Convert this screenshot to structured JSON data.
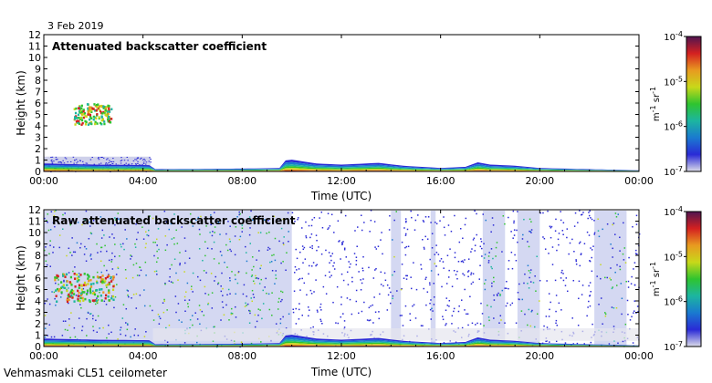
{
  "header": {
    "date": "3 Feb 2019"
  },
  "footer": {
    "site": "Vehmasmaki CL51 ceilometer"
  },
  "chart_data": [
    {
      "type": "heatmap",
      "title": "Attenuated backscatter coefficient",
      "xlabel": "Time (UTC)",
      "ylabel": "Height (km)",
      "x_ticks": [
        "00:00",
        "04:00",
        "08:00",
        "12:00",
        "16:00",
        "20:00",
        "00:00"
      ],
      "xlim_hours": [
        0,
        24
      ],
      "y_ticks": [
        "0",
        "1",
        "2",
        "3",
        "4",
        "5",
        "6",
        "7",
        "8",
        "9",
        "10",
        "11",
        "12"
      ],
      "ylim_km": [
        0,
        12
      ],
      "colorbar": {
        "scale": "log",
        "range": [
          1e-07,
          0.0001
        ],
        "ticks": [
          {
            "base": "10",
            "exp": "-4"
          },
          {
            "base": "10",
            "exp": "-5"
          },
          {
            "base": "10",
            "exp": "-6"
          },
          {
            "base": "10",
            "exp": "-7"
          }
        ],
        "label_main": "m",
        "label_exp1": "-1",
        "label_mid": " sr",
        "label_exp2": "-1",
        "colors": [
          "#dcdce8",
          "#2a2ad6",
          "#1a7ad0",
          "#1cb5a0",
          "#2fc42f",
          "#c8d81a",
          "#e89a20",
          "#d42020",
          "#501550"
        ]
      },
      "features": {
        "boundary_layer_km": [
          [
            0,
            0.7
          ],
          [
            2,
            0.6
          ],
          [
            4.3,
            0.55
          ],
          [
            4.4,
            0.2
          ],
          [
            8,
            0.25
          ],
          [
            9.5,
            0.3
          ],
          [
            9.8,
            1.1
          ],
          [
            11,
            0.7
          ],
          [
            12,
            0.6
          ],
          [
            13.5,
            0.75
          ],
          [
            14.5,
            0.5
          ],
          [
            16,
            0.3
          ],
          [
            17,
            0.4
          ],
          [
            17.5,
            0.8
          ],
          [
            18,
            0.6
          ],
          [
            19,
            0.5
          ],
          [
            20,
            0.3
          ],
          [
            24,
            0.1
          ]
        ],
        "cloud_layer_km": {
          "t_start": 1.2,
          "t_end": 2.7,
          "base": 4.2,
          "top": 6.0
        },
        "aerosol_haze_km": {
          "t_start": 0,
          "t_end": 4.3,
          "top": 1.3
        }
      }
    },
    {
      "type": "heatmap",
      "title": "Raw attenuated backscatter coefficient",
      "xlabel": "Time (UTC)",
      "ylabel": "Height (km)",
      "x_ticks": [
        "00:00",
        "04:00",
        "08:00",
        "12:00",
        "16:00",
        "20:00",
        "00:00"
      ],
      "xlim_hours": [
        0,
        24
      ],
      "y_ticks": [
        "0",
        "1",
        "2",
        "3",
        "4",
        "5",
        "6",
        "7",
        "8",
        "9",
        "10",
        "11",
        "12"
      ],
      "ylim_km": [
        0,
        12
      ],
      "colorbar": {
        "scale": "log",
        "range": [
          1e-07,
          0.0001
        ],
        "ticks": [
          {
            "base": "10",
            "exp": "-4"
          },
          {
            "base": "10",
            "exp": "-5"
          },
          {
            "base": "10",
            "exp": "-6"
          },
          {
            "base": "10",
            "exp": "-7"
          }
        ],
        "label_main": "m",
        "label_exp1": "-1",
        "label_mid": " sr",
        "label_exp2": "-1",
        "colors": [
          "#dcdce8",
          "#2a2ad6",
          "#1a7ad0",
          "#1cb5a0",
          "#2fc42f",
          "#c8d81a",
          "#e89a20",
          "#d42020",
          "#501550"
        ]
      },
      "features": {
        "noisy_bands_hours": [
          [
            0,
            10
          ],
          [
            14,
            14.4
          ],
          [
            15.6,
            15.8
          ],
          [
            17.7,
            18.6
          ],
          [
            19.1,
            20
          ],
          [
            22.2,
            23.5
          ]
        ],
        "cloud_layer_km": {
          "t_start": 0.4,
          "t_end": 2.8,
          "base": 4.0,
          "top": 6.5
        }
      }
    }
  ]
}
